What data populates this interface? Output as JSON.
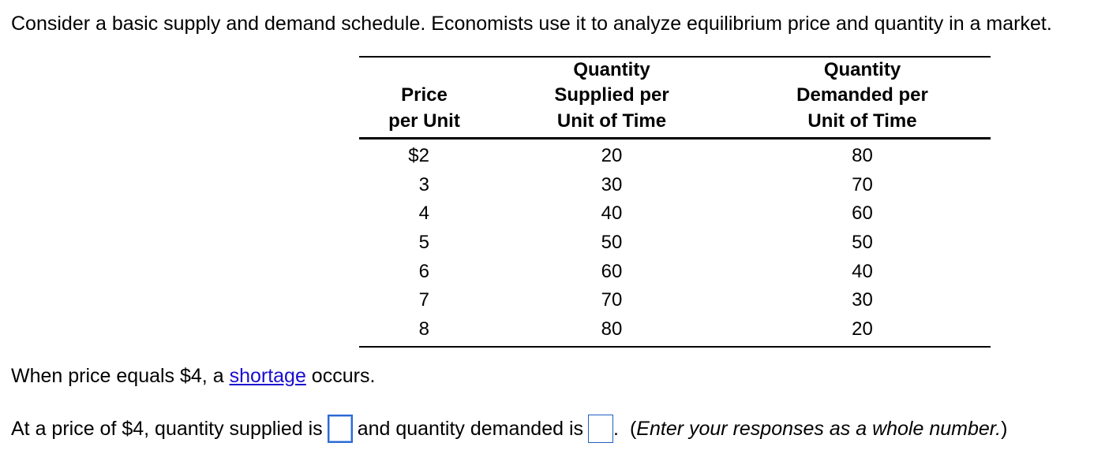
{
  "intro": "Consider a basic supply and demand schedule. Economists use it to analyze equilibrium price and quantity in a market.",
  "table": {
    "headers": {
      "price": [
        "Price",
        "per Unit"
      ],
      "supplied": [
        "Quantity",
        "Supplied per",
        "Unit of Time"
      ],
      "demanded": [
        "Quantity",
        "Demanded per",
        "Unit of Time"
      ]
    },
    "rows": [
      {
        "price": "$2",
        "supplied": "20",
        "demanded": "80"
      },
      {
        "price": "3",
        "supplied": "30",
        "demanded": "70"
      },
      {
        "price": "4",
        "supplied": "40",
        "demanded": "60"
      },
      {
        "price": "5",
        "supplied": "50",
        "demanded": "50"
      },
      {
        "price": "6",
        "supplied": "60",
        "demanded": "40"
      },
      {
        "price": "7",
        "supplied": "70",
        "demanded": "30"
      },
      {
        "price": "8",
        "supplied": "80",
        "demanded": "20"
      }
    ]
  },
  "statement": {
    "prefix": "When price equals $4, a ",
    "link": "shortage",
    "suffix": " occurs."
  },
  "question": {
    "part1": "At a price of $4, quantity supplied is",
    "part2": "and quantity demanded is",
    "part3": ".",
    "hint_open": "(",
    "hint": "Enter your responses as a whole number.",
    "hint_close": ")",
    "supplied_value": "",
    "demanded_value": ""
  }
}
